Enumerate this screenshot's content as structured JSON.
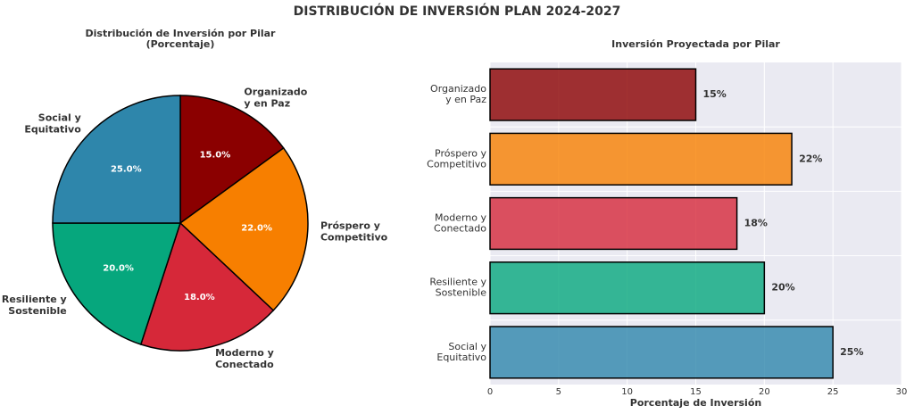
{
  "title": "DISTRIBUCIÓN DE INVERSIÓN PLAN 2024-2027",
  "chart_data": [
    {
      "type": "pie",
      "title": "Distribución de Inversión por Pilar\n(Porcentaje)",
      "categories": [
        "Organizado\ny en Paz",
        "Próspero y\nCompetitivo",
        "Moderno y\nConectado",
        "Resiliente y\nSostenible",
        "Social y\nEquitativo"
      ],
      "values": [
        15,
        22,
        18,
        20,
        25
      ],
      "value_labels": [
        "15.0%",
        "22.0%",
        "18.0%",
        "20.0%",
        "25.0%"
      ],
      "colors": [
        "#8b0000",
        "#f77f00",
        "#d62839",
        "#06a77d",
        "#2e86ab"
      ]
    },
    {
      "type": "barh",
      "title": "Inversión Proyectada por Pilar",
      "categories": [
        "Organizado\ny en Paz",
        "Próspero y\nCompetitivo",
        "Moderno y\nConectado",
        "Resiliente y\nSostenible",
        "Social y\nEquitativo"
      ],
      "values": [
        15,
        22,
        18,
        20,
        25
      ],
      "value_labels": [
        "15%",
        "22%",
        "18%",
        "20%",
        "25%"
      ],
      "colors": [
        "#8b0000",
        "#f77f00",
        "#d62839",
        "#06a77d",
        "#2e86ab"
      ],
      "xlabel": "Porcentaje de Inversión",
      "xlim": [
        0,
        30
      ],
      "xticks": [
        0,
        5,
        10,
        15,
        20,
        25,
        30
      ],
      "grid": true
    }
  ]
}
